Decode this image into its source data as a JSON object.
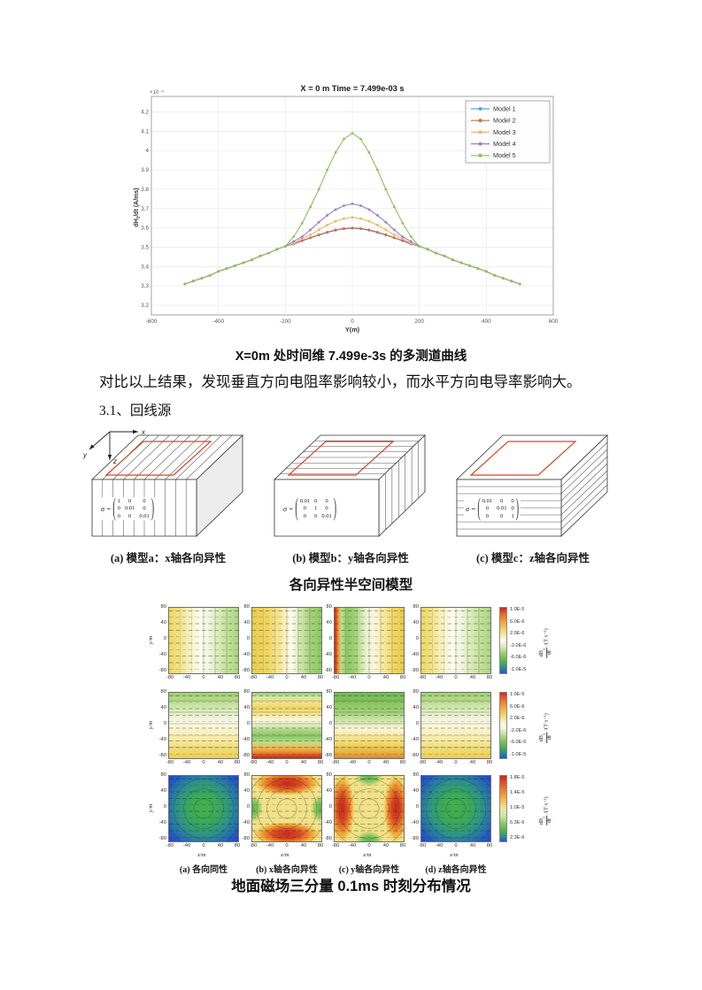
{
  "figure1": {
    "caption": "X=0m 处时间维 7.499e-3s 的多测道曲线"
  },
  "paragraph": "对比以上结果，发现垂直方向电阻率影响较小，而水平方向电导率影响大。",
  "section_heading": "3.1、回线源",
  "chart_data": {
    "type": "line",
    "title": "X = 0 m   Time = 7.499e-03 s",
    "xlabel": "Y(m)",
    "ylabel": "dHz/dt (A/ms)",
    "ylabel_parts": [
      "dH",
      "z",
      "/dt  (A/ms)"
    ],
    "exponent_label": "×10⁻⁴",
    "xlim": [
      -600,
      600
    ],
    "ylim": [
      3.15,
      4.28
    ],
    "xticks": [
      -600,
      -400,
      -200,
      0,
      200,
      400,
      600
    ],
    "yticks": [
      3.2,
      3.3,
      3.4,
      3.5,
      3.6,
      3.7,
      3.8,
      3.9,
      4,
      4.1,
      4.2
    ],
    "ytick_labels": [
      "3.2",
      "3.3",
      "3.4",
      "3.5",
      "3.6",
      "3.7",
      "3.8",
      "3.9",
      "4",
      "4.1",
      "4.2"
    ],
    "legend_position": "top-right",
    "grid": true,
    "x": [
      -500,
      -475,
      -450,
      -425,
      -400,
      -375,
      -350,
      -325,
      -300,
      -275,
      -250,
      -225,
      -200,
      -175,
      -150,
      -125,
      -100,
      -75,
      -50,
      -25,
      0,
      25,
      50,
      75,
      100,
      125,
      150,
      175,
      200,
      225,
      250,
      275,
      300,
      325,
      350,
      375,
      400,
      425,
      450,
      475,
      500
    ],
    "series": [
      {
        "name": "Model 1",
        "color": "#55a8d4",
        "values": [
          3.31,
          3.325,
          3.34,
          3.355,
          3.375,
          3.39,
          3.405,
          3.42,
          3.435,
          3.455,
          3.47,
          3.49,
          3.505,
          3.516,
          3.533,
          3.548,
          3.563,
          3.576,
          3.588,
          3.595,
          3.598,
          3.595,
          3.588,
          3.576,
          3.563,
          3.548,
          3.533,
          3.516,
          3.505,
          3.49,
          3.47,
          3.455,
          3.435,
          3.42,
          3.405,
          3.39,
          3.375,
          3.355,
          3.34,
          3.325,
          3.31
        ]
      },
      {
        "name": "Model 2",
        "color": "#cd6a55",
        "values": [
          3.31,
          3.325,
          3.34,
          3.355,
          3.375,
          3.39,
          3.405,
          3.42,
          3.435,
          3.455,
          3.47,
          3.49,
          3.505,
          3.518,
          3.535,
          3.55,
          3.565,
          3.578,
          3.59,
          3.597,
          3.6,
          3.597,
          3.59,
          3.578,
          3.565,
          3.55,
          3.535,
          3.518,
          3.505,
          3.49,
          3.47,
          3.455,
          3.435,
          3.42,
          3.405,
          3.39,
          3.375,
          3.355,
          3.34,
          3.325,
          3.31
        ]
      },
      {
        "name": "Model 3",
        "color": "#eeb566",
        "values": [
          3.31,
          3.325,
          3.34,
          3.355,
          3.375,
          3.39,
          3.405,
          3.42,
          3.435,
          3.455,
          3.47,
          3.49,
          3.505,
          3.52,
          3.545,
          3.565,
          3.59,
          3.615,
          3.635,
          3.648,
          3.655,
          3.648,
          3.635,
          3.615,
          3.59,
          3.565,
          3.545,
          3.52,
          3.505,
          3.49,
          3.47,
          3.455,
          3.435,
          3.42,
          3.405,
          3.39,
          3.375,
          3.355,
          3.34,
          3.325,
          3.31
        ]
      },
      {
        "name": "Model 4",
        "color": "#9b7fc2",
        "values": [
          3.31,
          3.325,
          3.34,
          3.355,
          3.375,
          3.39,
          3.405,
          3.42,
          3.435,
          3.455,
          3.47,
          3.49,
          3.505,
          3.53,
          3.555,
          3.59,
          3.63,
          3.665,
          3.695,
          3.715,
          3.725,
          3.715,
          3.695,
          3.665,
          3.63,
          3.59,
          3.555,
          3.53,
          3.505,
          3.49,
          3.47,
          3.455,
          3.435,
          3.42,
          3.405,
          3.39,
          3.375,
          3.355,
          3.34,
          3.325,
          3.31
        ]
      },
      {
        "name": "Model 5",
        "color": "#8dc063",
        "values": [
          3.31,
          3.325,
          3.34,
          3.355,
          3.375,
          3.39,
          3.405,
          3.42,
          3.435,
          3.455,
          3.47,
          3.49,
          3.505,
          3.555,
          3.625,
          3.71,
          3.8,
          3.9,
          3.99,
          4.06,
          4.09,
          4.06,
          3.99,
          3.9,
          3.8,
          3.71,
          3.625,
          3.555,
          3.505,
          3.49,
          3.47,
          3.455,
          3.435,
          3.42,
          3.405,
          3.39,
          3.375,
          3.355,
          3.34,
          3.325,
          3.31
        ]
      }
    ]
  },
  "models_figure": {
    "caption": "各向异性半空间模型",
    "sigma_symbol": "σ =",
    "axes_labels": {
      "x": "x",
      "y": "y",
      "z": "z"
    },
    "models": [
      {
        "caption": "(a) 模型a：x轴各向异性",
        "hatch": "x",
        "matrix": [
          [
            "1",
            "0",
            "0"
          ],
          [
            "0",
            "0.01",
            "0"
          ],
          [
            "0",
            "0",
            "0.01"
          ]
        ]
      },
      {
        "caption": "(b) 模型b：y轴各向异性",
        "hatch": "y",
        "matrix": [
          [
            "0.01",
            "0",
            "0"
          ],
          [
            "0",
            "1",
            "0"
          ],
          [
            "0",
            "0",
            "0.01"
          ]
        ]
      },
      {
        "caption": "(c) 模型c：z轴各向异性",
        "hatch": "z",
        "matrix": [
          [
            "0.01",
            "0",
            "0"
          ],
          [
            "0",
            "0.01",
            "0"
          ],
          [
            "0",
            "0",
            "1"
          ]
        ]
      }
    ]
  },
  "contour_figure": {
    "caption": "地面磁场三分量 0.1ms 时刻分布情况",
    "ylabel": "y/m",
    "xlabel": "x/m",
    "yticks": [
      "80",
      "40",
      "0",
      "-40",
      "-80"
    ],
    "xticks": [
      "-80",
      "-40",
      "0",
      "40",
      "80"
    ],
    "col_captions": [
      "(a) 各向同性",
      "(b) x轴各向异性",
      "(c) y轴各向异性",
      "(d) z轴各向异性"
    ],
    "rows": [
      {
        "component": "x",
        "unit": "/(T·s⁻¹)",
        "cbar": "cbar-signed",
        "contour": "cont-v",
        "colorbar_ticks": [
          "1.0E-5",
          "6.0E-6",
          "2.0E-6",
          "-2.0E-6",
          "-6.0E-6",
          "-1.0E-5"
        ],
        "patterns": [
          "pat-r1a",
          "pat-r1b",
          "pat-r1c",
          "pat-r1a"
        ]
      },
      {
        "component": "y",
        "unit": "/(T·s⁻¹)",
        "cbar": "cbar-signed",
        "contour": "cont-h",
        "colorbar_ticks": [
          "1.0E-5",
          "6.0E-6",
          "2.0E-6",
          "-2.0E-6",
          "-6.0E-6",
          "-1.0E-5"
        ],
        "patterns": [
          "pat-r2a",
          "pat-r2b",
          "pat-r2c",
          "pat-r2a"
        ]
      },
      {
        "component": "z",
        "unit": "/(T·s⁻¹)",
        "cbar": "cbar-dbz",
        "contour": "cont-r",
        "colorbar_ticks": [
          "1.8E-5",
          "1.4E-5",
          "1.0E-5",
          "6.3E-6",
          "2.3E-6"
        ],
        "patterns": [
          "pat-r3a",
          "pat-r3b",
          "pat-r3c",
          "pat-r3a"
        ]
      }
    ]
  }
}
